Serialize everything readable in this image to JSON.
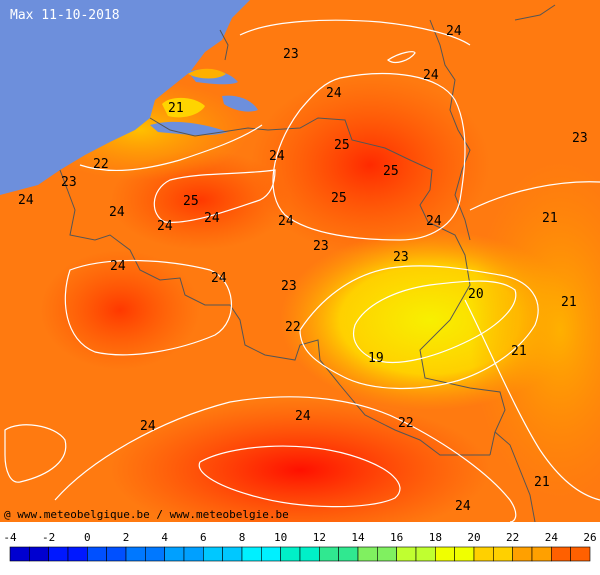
{
  "map": {
    "title": "Max 11-10-2018",
    "credit": "@ www.meteobelgique.be / www.meteobelgie.be",
    "colors": {
      "sea": "#6d8fdc",
      "land_base": "#ff7d10",
      "border": "#555555",
      "isoline": "#ffffff"
    },
    "labels": [
      {
        "text": "24",
        "id": "l1"
      },
      {
        "text": "23",
        "id": "l2"
      },
      {
        "text": "24",
        "id": "l3"
      },
      {
        "text": "21",
        "id": "l4"
      },
      {
        "text": "24",
        "id": "l5"
      },
      {
        "text": "23",
        "id": "l6"
      },
      {
        "text": "22",
        "id": "l7"
      },
      {
        "text": "25",
        "id": "l8"
      },
      {
        "text": "24",
        "id": "l9"
      },
      {
        "text": "25",
        "id": "l10"
      },
      {
        "text": "23",
        "id": "l11"
      },
      {
        "text": "24",
        "id": "l12"
      },
      {
        "text": "24",
        "id": "l13"
      },
      {
        "text": "25",
        "id": "l14"
      },
      {
        "text": "24",
        "id": "l15"
      },
      {
        "text": "25",
        "id": "l16"
      },
      {
        "text": "24",
        "id": "l17"
      },
      {
        "text": "24",
        "id": "l18"
      },
      {
        "text": "21",
        "id": "l19"
      },
      {
        "text": "24",
        "id": "l20"
      },
      {
        "text": "23",
        "id": "l21"
      },
      {
        "text": "23",
        "id": "l22"
      },
      {
        "text": "24",
        "id": "l23"
      },
      {
        "text": "24",
        "id": "l24"
      },
      {
        "text": "23",
        "id": "l25"
      },
      {
        "text": "20",
        "id": "l26"
      },
      {
        "text": "21",
        "id": "l27"
      },
      {
        "text": "22",
        "id": "l28"
      },
      {
        "text": "21",
        "id": "l29"
      },
      {
        "text": "19",
        "id": "l30"
      },
      {
        "text": "24",
        "id": "l31"
      },
      {
        "text": "24",
        "id": "l32"
      },
      {
        "text": "22",
        "id": "l33"
      },
      {
        "text": "21",
        "id": "l34"
      },
      {
        "text": "24",
        "id": "l35"
      }
    ]
  },
  "legend": {
    "ticks": [
      "-4",
      "-2",
      "0",
      "2",
      "4",
      "6",
      "8",
      "10",
      "12",
      "14",
      "16",
      "18",
      "20",
      "22",
      "24",
      "26"
    ],
    "colors": [
      "#0000d0",
      "#0018ff",
      "#0050ff",
      "#0078ff",
      "#00a0ff",
      "#00c8ff",
      "#00f0ff",
      "#00f0c8",
      "#30e890",
      "#80f060",
      "#c0ff30",
      "#f0ff00",
      "#ffd000",
      "#ffa000",
      "#ff6000"
    ]
  }
}
